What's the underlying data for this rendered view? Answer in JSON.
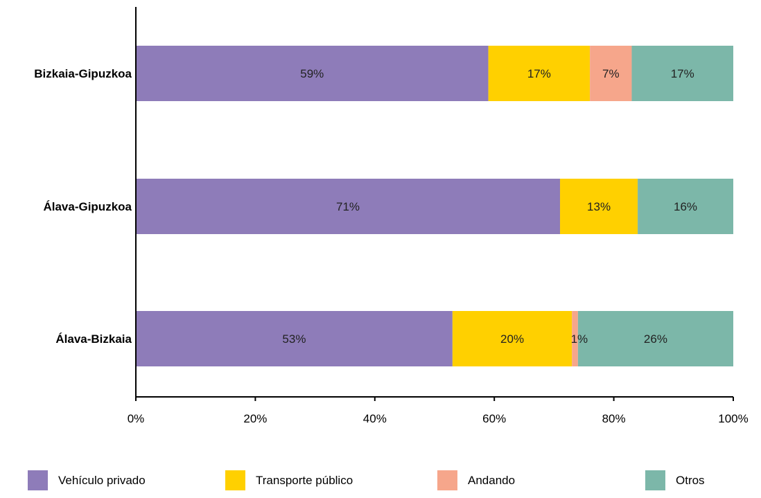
{
  "chart_data": {
    "type": "bar",
    "orientation": "horizontal",
    "stacked": true,
    "categories": [
      "Bizkaia-Gipuzkoa",
      "Álava-Gipuzkoa",
      "Álava-Bizkaia"
    ],
    "series": [
      {
        "name": "Vehículo privado",
        "color": "#8e7cb9",
        "values": [
          59,
          71,
          53
        ],
        "labels": [
          "59%",
          "71%",
          "53%"
        ]
      },
      {
        "name": "Transporte público",
        "color": "#ffd000",
        "values": [
          17,
          13,
          20
        ],
        "labels": [
          "17%",
          "13%",
          "20%"
        ]
      },
      {
        "name": "Andando",
        "color": "#f6a68b",
        "values": [
          7,
          0,
          1
        ],
        "labels": [
          "7%",
          "",
          "1%"
        ]
      },
      {
        "name": "Otros",
        "color": "#7cb7a9",
        "values": [
          17,
          16,
          26
        ],
        "labels": [
          "17%",
          "16%",
          "26%"
        ]
      }
    ],
    "xlim": [
      0,
      100
    ],
    "xticks": [
      0,
      20,
      40,
      60,
      80,
      100
    ],
    "xtick_labels": [
      "0%",
      "20%",
      "40%",
      "60%",
      "80%",
      "100%"
    ],
    "title": "",
    "xlabel": "",
    "ylabel": "",
    "grid": false,
    "legend_position": "bottom"
  }
}
